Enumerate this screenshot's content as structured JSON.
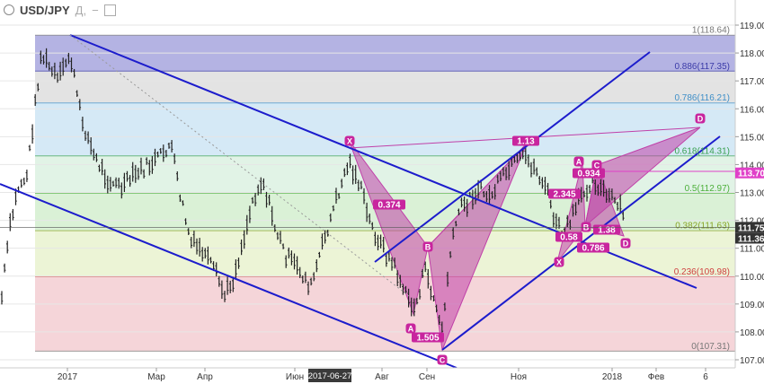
{
  "header": {
    "symbol": "USD/JPY",
    "interval": "Д,",
    "minus": "−"
  },
  "chart_data": {
    "type": "candlestick",
    "title": "USD/JPY, Д,",
    "y_axis": {
      "ticks": [
        "119.00",
        "118.00",
        "117.00",
        "116.00",
        "115.00",
        "114.00",
        "113.00",
        "112.00",
        "111.00",
        "110.00",
        "109.00",
        "108.00",
        "107.00"
      ],
      "range": [
        106.75,
        119.45
      ],
      "position": "right"
    },
    "x_axis": {
      "ticks": [
        "2017",
        "Мар",
        "Апр",
        "Июн",
        "2017-06-27",
        "Авг",
        "Сен",
        "Ноя",
        "2018",
        "Фев",
        "6"
      ],
      "highlighted": "2017-06-27"
    },
    "price_labels": [
      {
        "value": "113.70",
        "color": "#e040c8"
      },
      {
        "value": "111.75",
        "color": "#333333"
      },
      {
        "value": "111.36",
        "color": "#333333"
      }
    ],
    "fibonacci": [
      {
        "label": "1(118.64)",
        "price": 118.64,
        "band_color": "#9b9ad9",
        "text_color": "#777777"
      },
      {
        "label": "0.886(117.35)",
        "price": 117.35,
        "band_color": "#dadada",
        "text_color": "#3a3aa8"
      },
      {
        "label": "0.786(116.21)",
        "price": 116.21,
        "band_color": "#c7e2f3",
        "text_color": "#3f8fc8"
      },
      {
        "label": "0.618(114.31)",
        "price": 114.31,
        "band_color": "#d7efdd",
        "text_color": "#38a050"
      },
      {
        "label": "0.5(112.97)",
        "price": 112.97,
        "band_color": "#cdecc8",
        "text_color": "#4caf3a"
      },
      {
        "label": "0.382(111.63)",
        "price": 111.63,
        "band_color": "#e6f0c8",
        "text_color": "#8aa428"
      },
      {
        "label": "0.236(109.98)",
        "price": 109.98,
        "band_color": "#f2c7cc",
        "text_color": "#d04040"
      },
      {
        "label": "0(107.31)",
        "price": 107.31,
        "band_color": "#ffffff",
        "text_color": "#777777"
      }
    ],
    "pattern_labels": [
      {
        "text": "X",
        "role": "point"
      },
      {
        "text": "0.374",
        "role": "ratio"
      },
      {
        "text": "B",
        "role": "point"
      },
      {
        "text": "A",
        "role": "point"
      },
      {
        "text": "1.505",
        "role": "ratio"
      },
      {
        "text": "C",
        "role": "point"
      },
      {
        "text": "1.13",
        "role": "ratio"
      },
      {
        "text": "D",
        "role": "point"
      },
      {
        "text": "A",
        "role": "point"
      },
      {
        "text": "0.934",
        "role": "ratio"
      },
      {
        "text": "C",
        "role": "point"
      },
      {
        "text": "2.345",
        "role": "ratio"
      },
      {
        "text": "B",
        "role": "point"
      },
      {
        "text": "1.38",
        "role": "ratio"
      },
      {
        "text": "0.58",
        "role": "ratio"
      },
      {
        "text": "0.786",
        "role": "ratio"
      },
      {
        "text": "X",
        "role": "point"
      },
      {
        "text": "D",
        "role": "point"
      }
    ],
    "colors": {
      "trend_line": "#1c1ccc",
      "pattern_fill": "#c040a8",
      "label_bg": "#c8259e",
      "bars": "#222222"
    }
  }
}
